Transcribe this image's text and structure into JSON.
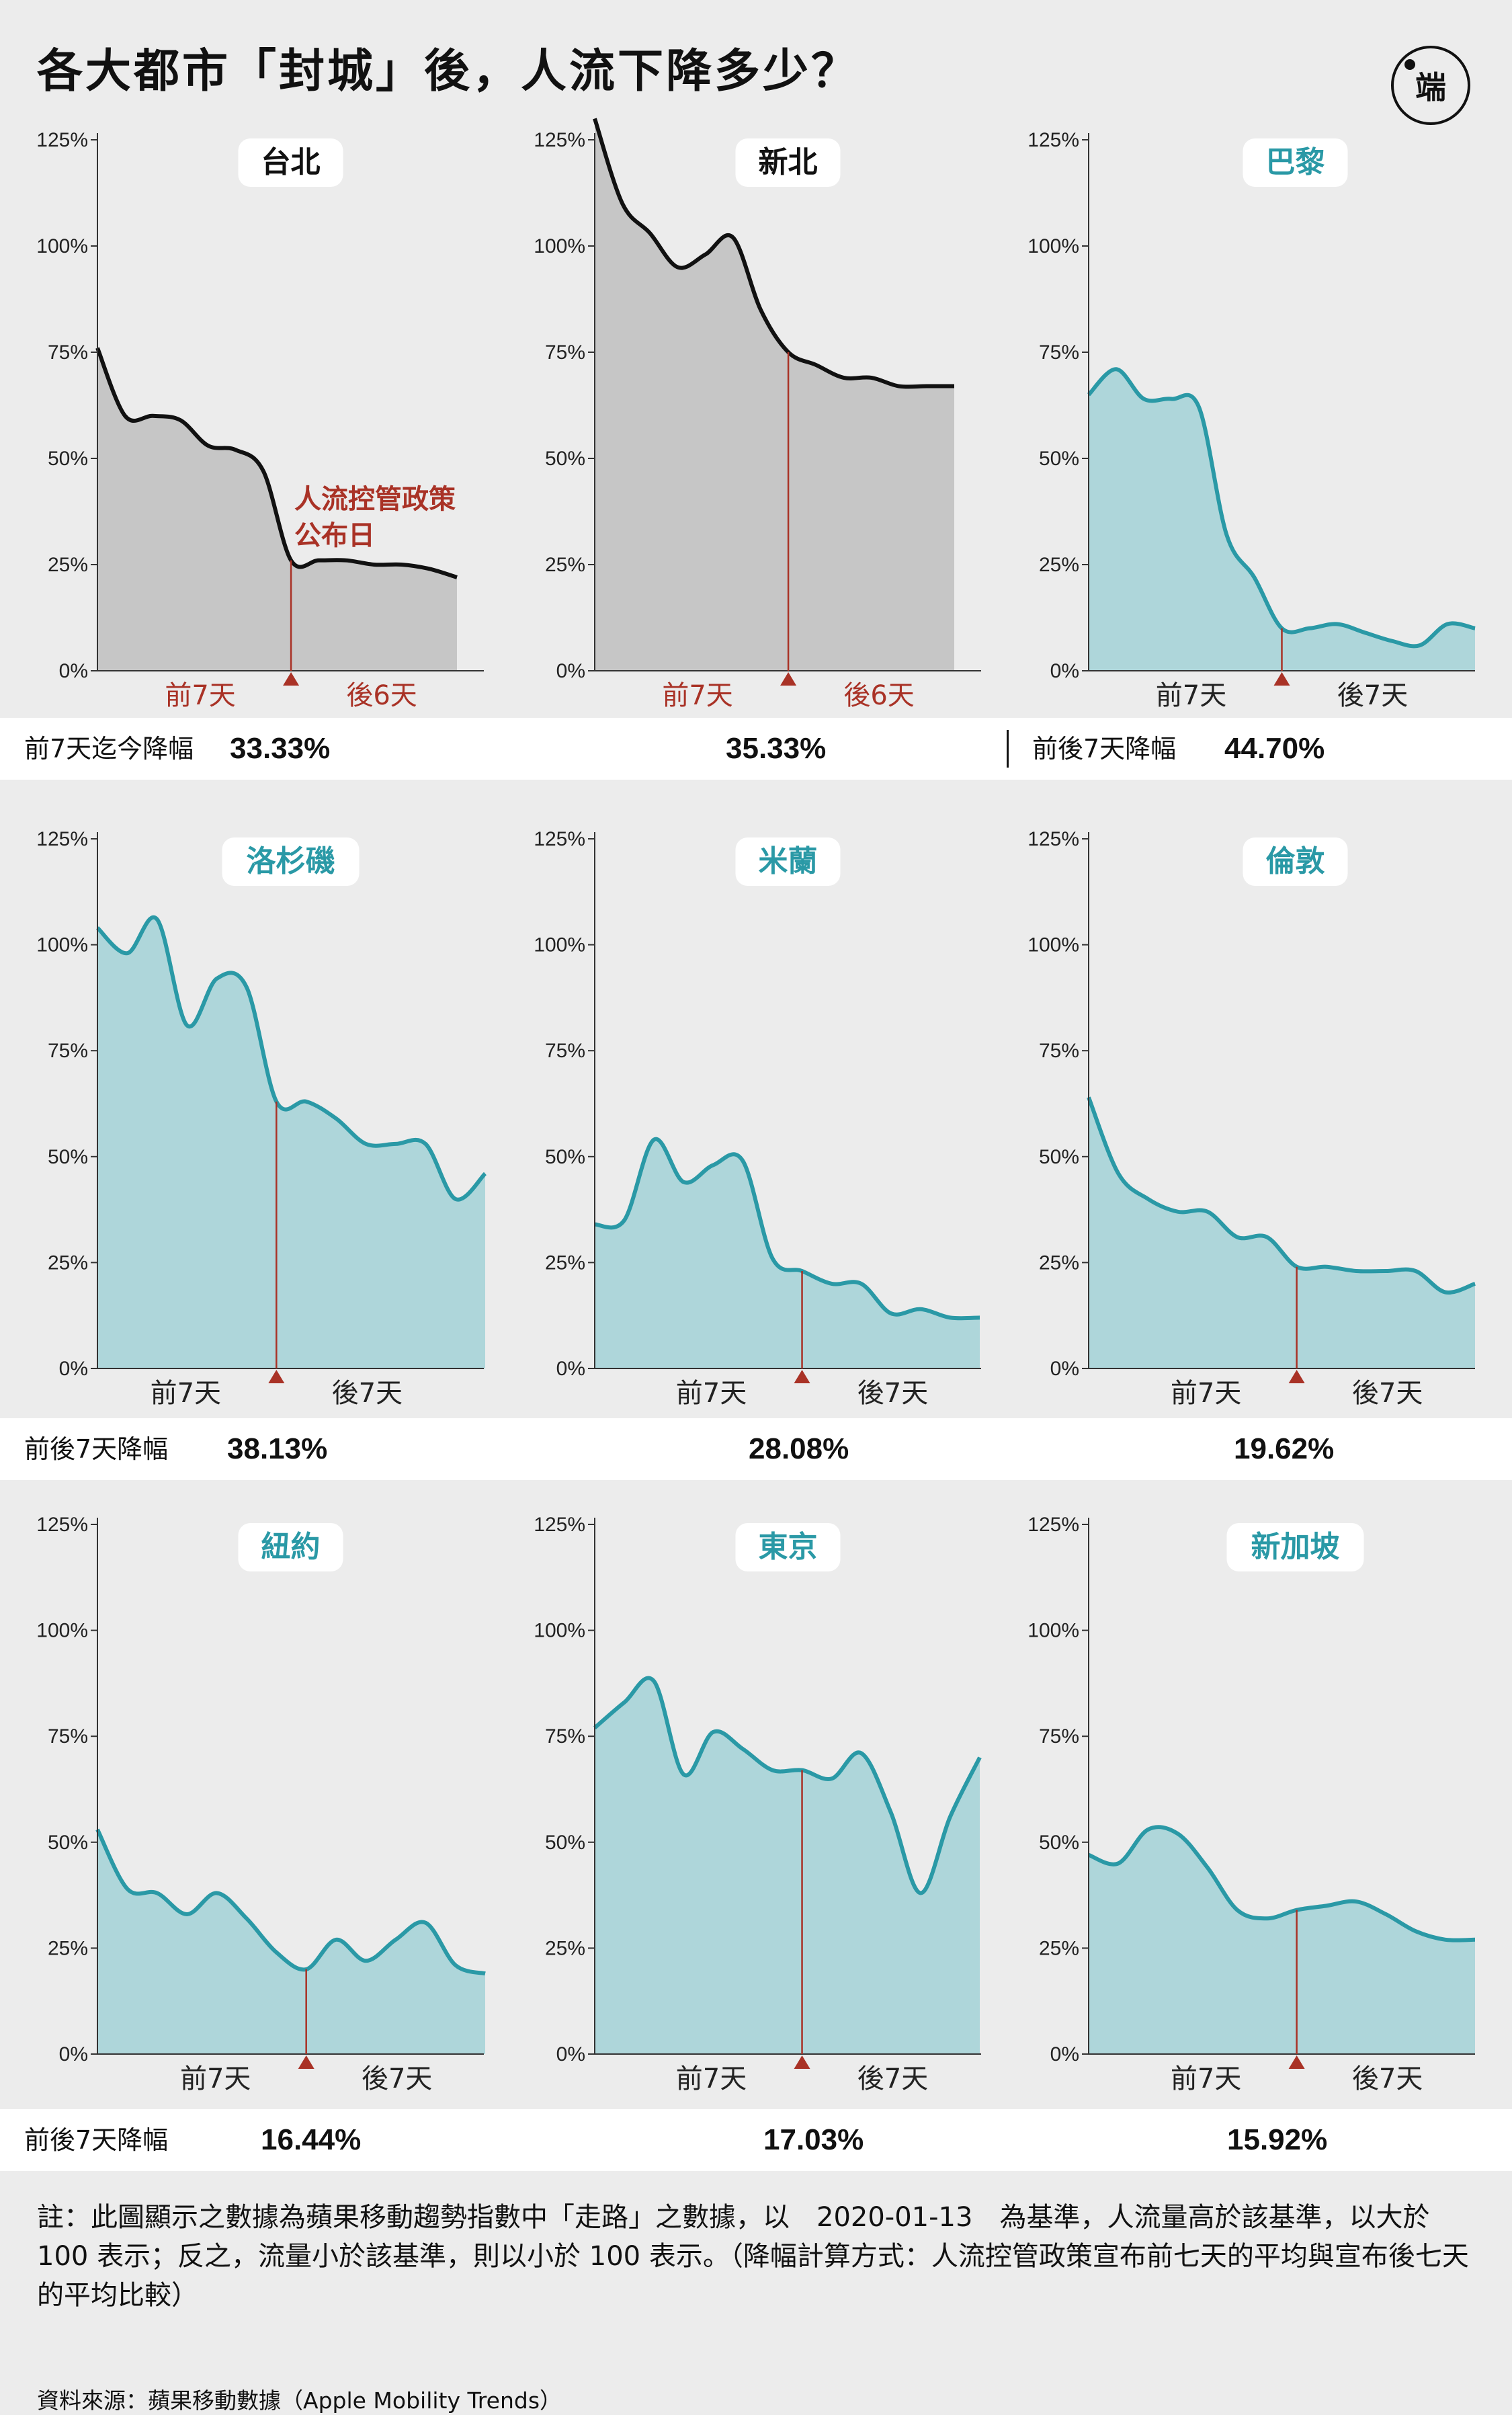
{
  "title": "各大都市「封城」後，人流下降多少？",
  "logo_text": "端",
  "colors": {
    "gray_fill": "#c6c6c6",
    "gray_line": "#111111",
    "teal_fill": "#aed6da",
    "teal_line": "#2a99a6",
    "red": "#a93226"
  },
  "y_ticks": [
    "125%",
    "100%",
    "75%",
    "50%",
    "25%",
    "0%"
  ],
  "annotation": [
    "人流控管政策",
    "公布日"
  ],
  "bands": [
    {
      "label1": "前7天迄今降幅",
      "values": [
        "33.33%",
        "35.33%",
        "44.70%"
      ],
      "label3": "前後7天降幅"
    },
    {
      "label1": "前後7天降幅",
      "values": [
        "38.13%",
        "28.08%",
        "19.62%"
      ]
    },
    {
      "label1": "前後7天降幅",
      "values": [
        "16.44%",
        "17.03%",
        "15.92%"
      ]
    }
  ],
  "chart_data": [
    {
      "type": "area",
      "title": "台北",
      "style": "gray",
      "xlabels": [
        "前7天",
        "後6天"
      ],
      "ylim": [
        0,
        125
      ],
      "event_index": 7,
      "y": [
        76,
        60,
        60,
        59,
        53,
        52,
        47,
        26,
        26,
        26,
        25,
        25,
        24,
        22
      ]
    },
    {
      "type": "area",
      "title": "新北",
      "style": "gray",
      "xlabels": [
        "前7天",
        "後6天"
      ],
      "ylim": [
        0,
        125
      ],
      "event_index": 7,
      "y": [
        130,
        110,
        103,
        95,
        98,
        102,
        85,
        75,
        72,
        69,
        69,
        67,
        67,
        67
      ]
    },
    {
      "type": "area",
      "title": "巴黎",
      "style": "teal",
      "xlabels": [
        "前7天",
        "後7天"
      ],
      "ylim": [
        0,
        125
      ],
      "event_index": 7,
      "y": [
        65,
        71,
        64,
        64,
        62,
        32,
        22,
        10,
        10,
        11,
        9,
        7,
        6,
        11,
        10
      ]
    },
    {
      "type": "area",
      "title": "洛杉磯",
      "style": "teal",
      "xlabels": [
        "前7天",
        "後7天"
      ],
      "ylim": [
        0,
        125
      ],
      "event_index": 6,
      "y": [
        104,
        98,
        106,
        81,
        92,
        90,
        63,
        63,
        59,
        53,
        53,
        53,
        40,
        46
      ]
    },
    {
      "type": "area",
      "title": "米蘭",
      "style": "teal",
      "xlabels": [
        "前7天",
        "後7天"
      ],
      "ylim": [
        0,
        125
      ],
      "event_index": 7,
      "y": [
        34,
        35,
        54,
        44,
        48,
        49,
        26,
        23,
        20,
        20,
        13,
        14,
        12,
        12
      ]
    },
    {
      "type": "area",
      "title": "倫敦",
      "style": "teal",
      "xlabels": [
        "前7天",
        "後7天"
      ],
      "ylim": [
        0,
        125
      ],
      "event_index": 7,
      "y": [
        64,
        46,
        40,
        37,
        37,
        31,
        31,
        24,
        24,
        23,
        23,
        23,
        18,
        20
      ]
    },
    {
      "type": "area",
      "title": "紐約",
      "style": "teal",
      "xlabels": [
        "前7天",
        "後7天"
      ],
      "ylim": [
        0,
        125
      ],
      "event_index": 7,
      "y": [
        53,
        39,
        38,
        33,
        38,
        32,
        24,
        20,
        27,
        22,
        27,
        31,
        21,
        19
      ]
    },
    {
      "type": "area",
      "title": "東京",
      "style": "teal",
      "xlabels": [
        "前7天",
        "後7天"
      ],
      "ylim": [
        0,
        125
      ],
      "event_index": 7,
      "y": [
        77,
        83,
        88,
        66,
        76,
        72,
        67,
        67,
        65,
        71,
        57,
        38,
        56,
        70
      ]
    },
    {
      "type": "area",
      "title": "新加坡",
      "style": "teal",
      "xlabels": [
        "前7天",
        "後7天"
      ],
      "ylim": [
        0,
        125
      ],
      "event_index": 7,
      "y": [
        47,
        45,
        53,
        52,
        44,
        34,
        32,
        34,
        35,
        36,
        33,
        29,
        27,
        27
      ]
    }
  ],
  "note": "註：此圖顯示之數據為蘋果移動趨勢指數中「走路」之數據，以　2020-01-13　為基準，人流量高於該基準，以大於 100 表示；反之，流量小於該基準，則以小於 100 表示。（降幅計算方式：人流控管政策宣布前七天的平均與宣布後七天的平均比較）",
  "source": "資料來源：蘋果移動數據（Apple Mobility Trends）"
}
